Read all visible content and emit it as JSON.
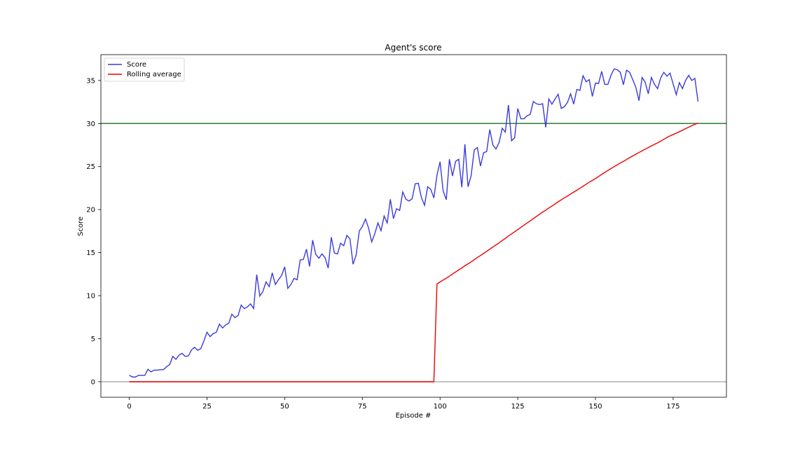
{
  "chart_data": {
    "type": "line",
    "title": "Agent's score",
    "xlabel": "Episode #",
    "ylabel": "Score",
    "xlim": [
      -9.15,
      192.15
    ],
    "ylim": [
      -1.8,
      38.0
    ],
    "xticks": [
      0,
      25,
      50,
      75,
      100,
      125,
      150,
      175
    ],
    "yticks": [
      0,
      5,
      10,
      15,
      20,
      25,
      30,
      35
    ],
    "grid": false,
    "legend": {
      "placement": "top-left",
      "entries": [
        "Score",
        "Rolling average"
      ]
    },
    "reference_lines": [
      {
        "y": 30,
        "color": "#2e7d32"
      },
      {
        "y": 0,
        "color": "#b0b0b0"
      }
    ],
    "series": [
      {
        "name": "Score",
        "color": "#3b3bdc",
        "y": [
          0.75,
          0.55,
          0.55,
          0.75,
          0.75,
          0.75,
          1.45,
          1.15,
          1.35,
          1.35,
          1.4,
          1.4,
          1.75,
          2.0,
          2.95,
          2.6,
          3.1,
          3.3,
          2.95,
          3.0,
          3.7,
          4.0,
          3.65,
          3.85,
          4.75,
          5.75,
          5.25,
          5.6,
          5.75,
          6.7,
          6.25,
          6.6,
          6.8,
          7.85,
          7.45,
          7.7,
          8.9,
          8.5,
          8.7,
          9.05,
          8.5,
          12.45,
          9.95,
          10.5,
          11.6,
          11.05,
          12.65,
          11.3,
          11.85,
          12.35,
          13.35,
          10.85,
          11.3,
          12.0,
          11.85,
          14.15,
          14.2,
          15.4,
          13.4,
          16.45,
          14.8,
          14.35,
          14.85,
          14.4,
          13.2,
          16.8,
          14.95,
          14.85,
          16.1,
          15.8,
          17.0,
          16.6,
          13.65,
          14.75,
          17.5,
          18.05,
          18.9,
          17.85,
          16.25,
          17.2,
          18.45,
          17.55,
          19.25,
          18.45,
          21.2,
          18.95,
          20.1,
          19.9,
          22.05,
          21.2,
          21.0,
          21.25,
          23.0,
          23.05,
          21.4,
          20.5,
          22.65,
          22.35,
          21.35,
          24.0,
          25.55,
          22.15,
          21.15,
          25.85,
          23.9,
          25.6,
          25.85,
          22.6,
          27.6,
          22.65,
          23.95,
          26.95,
          27.2,
          25.05,
          26.6,
          26.75,
          29.3,
          27.5,
          27.05,
          27.8,
          29.45,
          29.0,
          32.15,
          28.0,
          28.35,
          31.75,
          30.55,
          30.55,
          30.9,
          31.05,
          32.55,
          32.3,
          32.2,
          32.3,
          29.55,
          32.85,
          32.25,
          32.85,
          33.4,
          31.75,
          31.95,
          32.45,
          33.45,
          32.25,
          33.95,
          33.85,
          35.55,
          34.85,
          35.1,
          33.15,
          34.7,
          34.65,
          36.05,
          34.55,
          34.55,
          35.6,
          36.35,
          36.25,
          35.95,
          34.5,
          36.2,
          35.95,
          35.1,
          34.2,
          32.65,
          35.35,
          34.8,
          33.45,
          35.35,
          34.55,
          34.05,
          35.3,
          35.95,
          35.5,
          35.85,
          34.6,
          33.35,
          34.75,
          34.05,
          35.0,
          35.6,
          35.0,
          35.25,
          32.55
        ]
      },
      {
        "name": "Rolling average",
        "color": "#ee0000",
        "zero_until": 98,
        "first_avg_index": 99,
        "first_avg_value": 11.35,
        "last_value": 30.05
      }
    ]
  }
}
